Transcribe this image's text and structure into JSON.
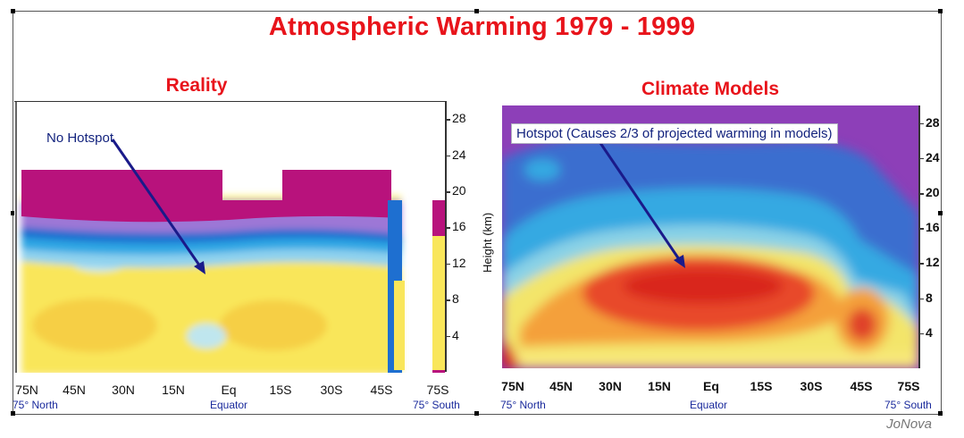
{
  "title": "Atmospheric Warming 1979 - 1999",
  "credit": "JoNova",
  "chart_data": [
    {
      "type": "heatmap",
      "title": "Reality",
      "annotation": "No Hotspot",
      "xlabel": "",
      "ylabel": "",
      "x_ticks": [
        "75N",
        "45N",
        "30N",
        "15N",
        "Eq",
        "15S",
        "30S",
        "45S",
        "75S"
      ],
      "x_sublabels": [
        "75° North",
        "Equator",
        "75° South"
      ],
      "y_ticks": [
        28,
        24,
        20,
        16,
        12,
        8,
        4
      ],
      "ylim": [
        0,
        30
      ],
      "colors": {
        "background": "#fff56b",
        "band_mid": "#2ea7e4",
        "band_dark": "#1e6fd0",
        "top": "#b8127c",
        "lavender": "#9d77d6",
        "orange": "#f4b63c",
        "light_blue": "#bfe6ee"
      }
    },
    {
      "type": "heatmap",
      "title": "Climate Models",
      "annotation": "Hotspot (Causes 2/3 of projected warming in models)",
      "xlabel": "",
      "ylabel": "Height (km)",
      "x_ticks": [
        "75N",
        "45N",
        "30N",
        "15N",
        "Eq",
        "15S",
        "30S",
        "45S",
        "75S"
      ],
      "x_sublabels": [
        "75° North",
        "Equator",
        "75° South"
      ],
      "y_ticks": [
        28,
        24,
        20,
        16,
        12,
        8,
        4
      ],
      "ylim": [
        0,
        30
      ],
      "colors": {
        "top": "#8d3fb8",
        "blue": "#3b6ecf",
        "cyan": "#35a9e2",
        "yellow": "#f3e56a",
        "orange": "#f4a03a",
        "red": "#e8482b",
        "dark_red": "#d9261f"
      }
    }
  ]
}
